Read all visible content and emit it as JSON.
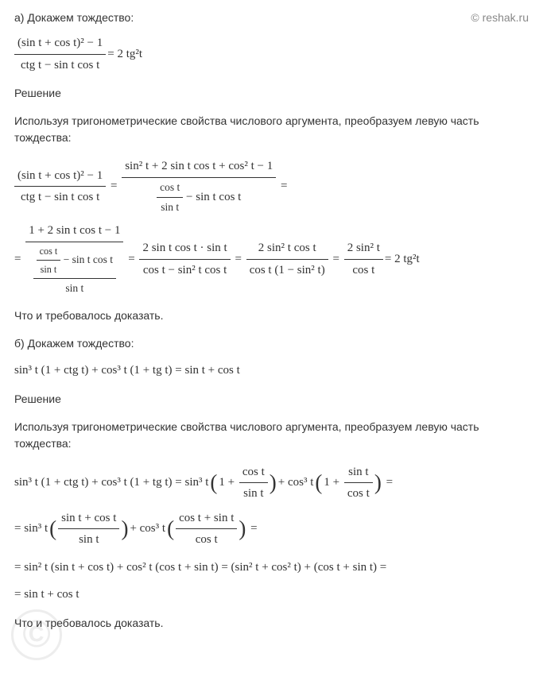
{
  "watermark": {
    "top_text": "© reshak.ru",
    "copy_symbol": "©"
  },
  "part_a": {
    "title": "а) Докажем тождество:",
    "identity_lhs_num": "(sin t + cos t)² − 1",
    "identity_lhs_den": "ctg t − sin t cos t",
    "identity_rhs": "= 2 tg²t",
    "solution_label": "Решение",
    "intro_text": "Используя тригонометрические свойства числового аргумента, преобразуем левую часть тождества:",
    "chain": {
      "step1_num": "(sin t + cos t)² − 1",
      "step1_den": "ctg t − sin t cos t",
      "step2_num": "sin² t + 2 sin t cos t + cos² t − 1",
      "step2_den_inner_num": "cos t",
      "step2_den_inner_den": "sin t",
      "step2_den_after": " − sin t cos t",
      "step3_num": "1 + 2 sin t cos t − 1",
      "step3_den_top_num": "cos t",
      "step3_den_top_den": "sin t",
      "step3_den_top_after": " − sin t cos t",
      "step3_den_bottom": "sin t",
      "step4_num": "2 sin t cos t · sin t",
      "step4_den": "cos t − sin² t cos t",
      "step5_num": "2 sin² t cos t",
      "step5_den": "cos t (1 − sin² t)",
      "step6_num": "2 sin² t",
      "step6_den": "cos t",
      "step7": "= 2 tg²t"
    },
    "conclusion": "Что и требовалось доказать."
  },
  "part_b": {
    "title": "б) Докажем тождество:",
    "identity": "sin³ t (1 + ctg t) + cos³ t (1 + tg t) = sin t + cos t",
    "solution_label": "Решение",
    "intro_text": "Используя тригонометрические свойства числового аргумента, преобразуем левую часть тождества:",
    "chain": {
      "line1_start": "sin³ t (1 + ctg t) + cos³ t (1 + tg t) = sin³ t ",
      "line1_frac1_num": "cos t",
      "line1_frac1_den": "sin t",
      "line1_mid": " + cos³ t ",
      "line1_frac2_num": "sin t",
      "line1_frac2_den": "cos t",
      "line2_start": "= sin³ t ",
      "line2_frac1_num": "sin t + cos t",
      "line2_frac1_den": "sin t",
      "line2_mid": " + cos³ t ",
      "line2_frac2_num": "cos t + sin t",
      "line2_frac2_den": "cos t",
      "line3": "= sin² t (sin t + cos t) + cos² t (cos t + sin t) = (sin² t + cos² t) + (cos t + sin t) =",
      "line4": "= sin t + cos t"
    },
    "conclusion": "Что и требовалось доказать."
  },
  "colors": {
    "text": "#333333",
    "background": "#ffffff",
    "watermark_gray": "#888888",
    "copy_gray": "#cccccc"
  }
}
